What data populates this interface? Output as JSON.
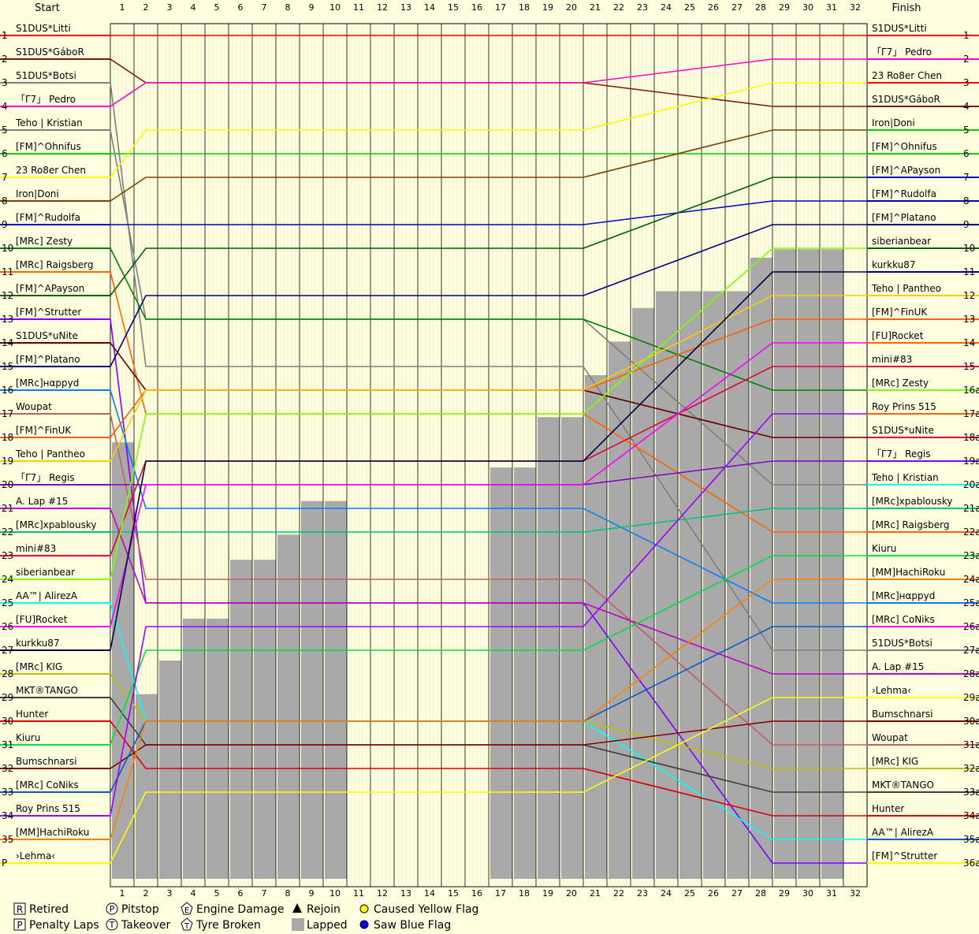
{
  "chart_data": {
    "type": "line",
    "header": {
      "start": "Start",
      "finish": "Finish"
    },
    "laps": [
      "1",
      "2",
      "3",
      "4",
      "5",
      "6",
      "7",
      "8",
      "9",
      "10",
      "11",
      "12",
      "13",
      "14",
      "15",
      "16",
      "17",
      "18",
      "19",
      "20",
      "21",
      "22",
      "23",
      "24",
      "25",
      "26",
      "27",
      "28",
      "29",
      "30",
      "31",
      "32"
    ],
    "positions_left": [
      "1",
      "2",
      "3",
      "4",
      "5",
      "6",
      "7",
      "8",
      "9",
      "10",
      "11",
      "12",
      "13",
      "14",
      "15",
      "16",
      "17",
      "18",
      "19",
      "20",
      "21",
      "22",
      "23",
      "24",
      "25",
      "26",
      "27",
      "28",
      "29",
      "30",
      "31",
      "32",
      "33",
      "34",
      "35",
      "P"
    ],
    "positions_right": [
      "1",
      "2",
      "3",
      "4",
      "5",
      "6",
      "7",
      "8",
      "9",
      "10",
      "11",
      "12",
      "13",
      "14",
      "15",
      "16a",
      "17a",
      "18a",
      "19a",
      "20a",
      "21a",
      "22a",
      "23a",
      "24a",
      "25a",
      "26a",
      "27a",
      "28a",
      "29a",
      "30a",
      "31a",
      "32a",
      "33a",
      "34a",
      "35a",
      "36a"
    ],
    "start_drivers": [
      "S1DUS*Litti",
      "S1DUS*GáboR",
      "51DUS*Botsi",
      "「Γ7」 Pedro",
      "Teho | Kristian",
      "[FM]^Ohnifus",
      "23 Ro8er Chen",
      "Iron|Doni",
      "[FM]^Rudolfa",
      "[MRc] Zesty",
      "[MRc] Raigsberg",
      "[FM]^APayson",
      "[FM]^Strutter",
      "S1DUS*uNite",
      "[FM]^Platano",
      "[MRc]нαppyd",
      "Woupat",
      "[FM]^FinUK",
      "Teho | Pantheo",
      "「Γ7」 Regis",
      "A. Lap #15",
      "[MRc]xpablousky",
      "mini#83",
      "siberianbear",
      "AA™| AlirezA",
      "[FU]Rocket",
      "kurkku87",
      "[MRc] KIG",
      "MKT®TANGO",
      "Hunter",
      "Kiuru",
      "Bumschnarsi",
      "[MRc] CoNiks",
      "Roy Prins 515",
      "[MM]HachiRoku",
      "›Lehma‹"
    ],
    "finish_drivers": [
      "S1DUS*Litti",
      "「Γ7」 Pedro",
      "23 Ro8er Chen",
      "S1DUS*GáboR",
      "Iron|Doni",
      "[FM]^Ohnifus",
      "[FM]^APayson",
      "[FM]^Rudolfa",
      "[FM]^Platano",
      "siberianbear",
      "kurkku87",
      "Teho | Pantheo",
      "[FM]^FinUK",
      "[FU]Rocket",
      "mini#83",
      "[MRc] Zesty",
      "Roy Prins 515",
      "S1DUS*uNite",
      "「Γ7」 Regis",
      "Teho | Kristian",
      "[MRc]xpablousky",
      "[MRc] Raigsberg",
      "Kiuru",
      "[MM]HachiRoku",
      "[MRc]нαppyd",
      "[MRc] CoNiks",
      "51DUS*Botsi",
      "A. Lap #15",
      "›Lehma‹",
      "Bumschnarsi",
      "Woupat",
      "[MRc] KIG",
      "MKT®TANGO",
      "Hunter",
      "AA™| AlirezA",
      "[FM]^Strutter"
    ],
    "colors": [
      "#ff0000",
      "#7a1a00",
      "#7f7f7f",
      "#ff00c8",
      "#808080",
      "#00cc00",
      "#ffff00",
      "#804000",
      "#0000c0",
      "#008000",
      "#ff6600",
      "#006000",
      "#8000ff",
      "#600000",
      "#000080",
      "#0080ff",
      "#c06060",
      "#ff6000",
      "#ffcc00",
      "#8000c0",
      "#c000c0",
      "#00c080",
      "#e00040",
      "#80ff00",
      "#00ffff",
      "#ff00ff",
      "#000040",
      "#c0c000",
      "#404040",
      "#e00000",
      "#00e040",
      "#800000",
      "#0060c0",
      "#a000ff",
      "#ff8000",
      "#ffff00"
    ],
    "finish_colors": [
      "#ff0000",
      "#ff00c8",
      "#ff0000",
      "#7a1a00",
      "#00cc00",
      "#00cc00",
      "#0000c0",
      "#0000c0",
      "#000080",
      "#006000",
      "#000080",
      "#ffcc00",
      "#ff6600",
      "#ff6600",
      "#e00040",
      "#80ff00",
      "#ff6000",
      "#e00040",
      "#8000ff",
      "#00ffff",
      "#00c080",
      "#ff6600",
      "#00e040",
      "#ff8000",
      "#0080ff",
      "#ff00ff",
      "#7f7f7f",
      "#c000c0",
      "#ffff00",
      "#800000",
      "#c06060",
      "#c0c000",
      "#404040",
      "#e00000",
      "#0060c0",
      "#ffff00"
    ],
    "lapped_fraction": [
      0.52,
      0.22,
      0.26,
      0.31,
      0.31,
      0.38,
      0.38,
      0.41,
      0.45,
      0.45,
      0,
      0,
      0,
      0,
      0,
      0,
      0.49,
      0.49,
      0.55,
      0.55,
      0.6,
      0.64,
      0.68,
      0.7,
      0.7,
      0.7,
      0.7,
      0.74,
      0.75,
      0.75,
      0.75,
      0
    ],
    "icons": {
      "retired": "R",
      "penalty": "P",
      "pitstop": "P",
      "takeover": "T",
      "engine": "E",
      "tyre": "T"
    },
    "legend": [
      {
        "symbol": "R",
        "shape": "square",
        "label": "Retired"
      },
      {
        "symbol": "P",
        "shape": "square",
        "label": "Penalty Laps"
      },
      {
        "symbol": "P",
        "shape": "circle",
        "label": "Pitstop"
      },
      {
        "symbol": "T",
        "shape": "circle",
        "label": "Takeover"
      },
      {
        "symbol": "E",
        "shape": "pentagon",
        "label": "Engine Damage"
      },
      {
        "symbol": "T",
        "shape": "pentagon",
        "label": "Tyre Broken"
      },
      {
        "symbol": "",
        "shape": "triangle",
        "label": "Rejoin"
      },
      {
        "symbol": "",
        "shape": "graybox",
        "label": "Lapped"
      },
      {
        "symbol": "",
        "shape": "yellow-dot",
        "label": "Caused Yellow Flag"
      },
      {
        "symbol": "",
        "shape": "blue-dot",
        "label": "Saw Blue Flag"
      }
    ]
  }
}
